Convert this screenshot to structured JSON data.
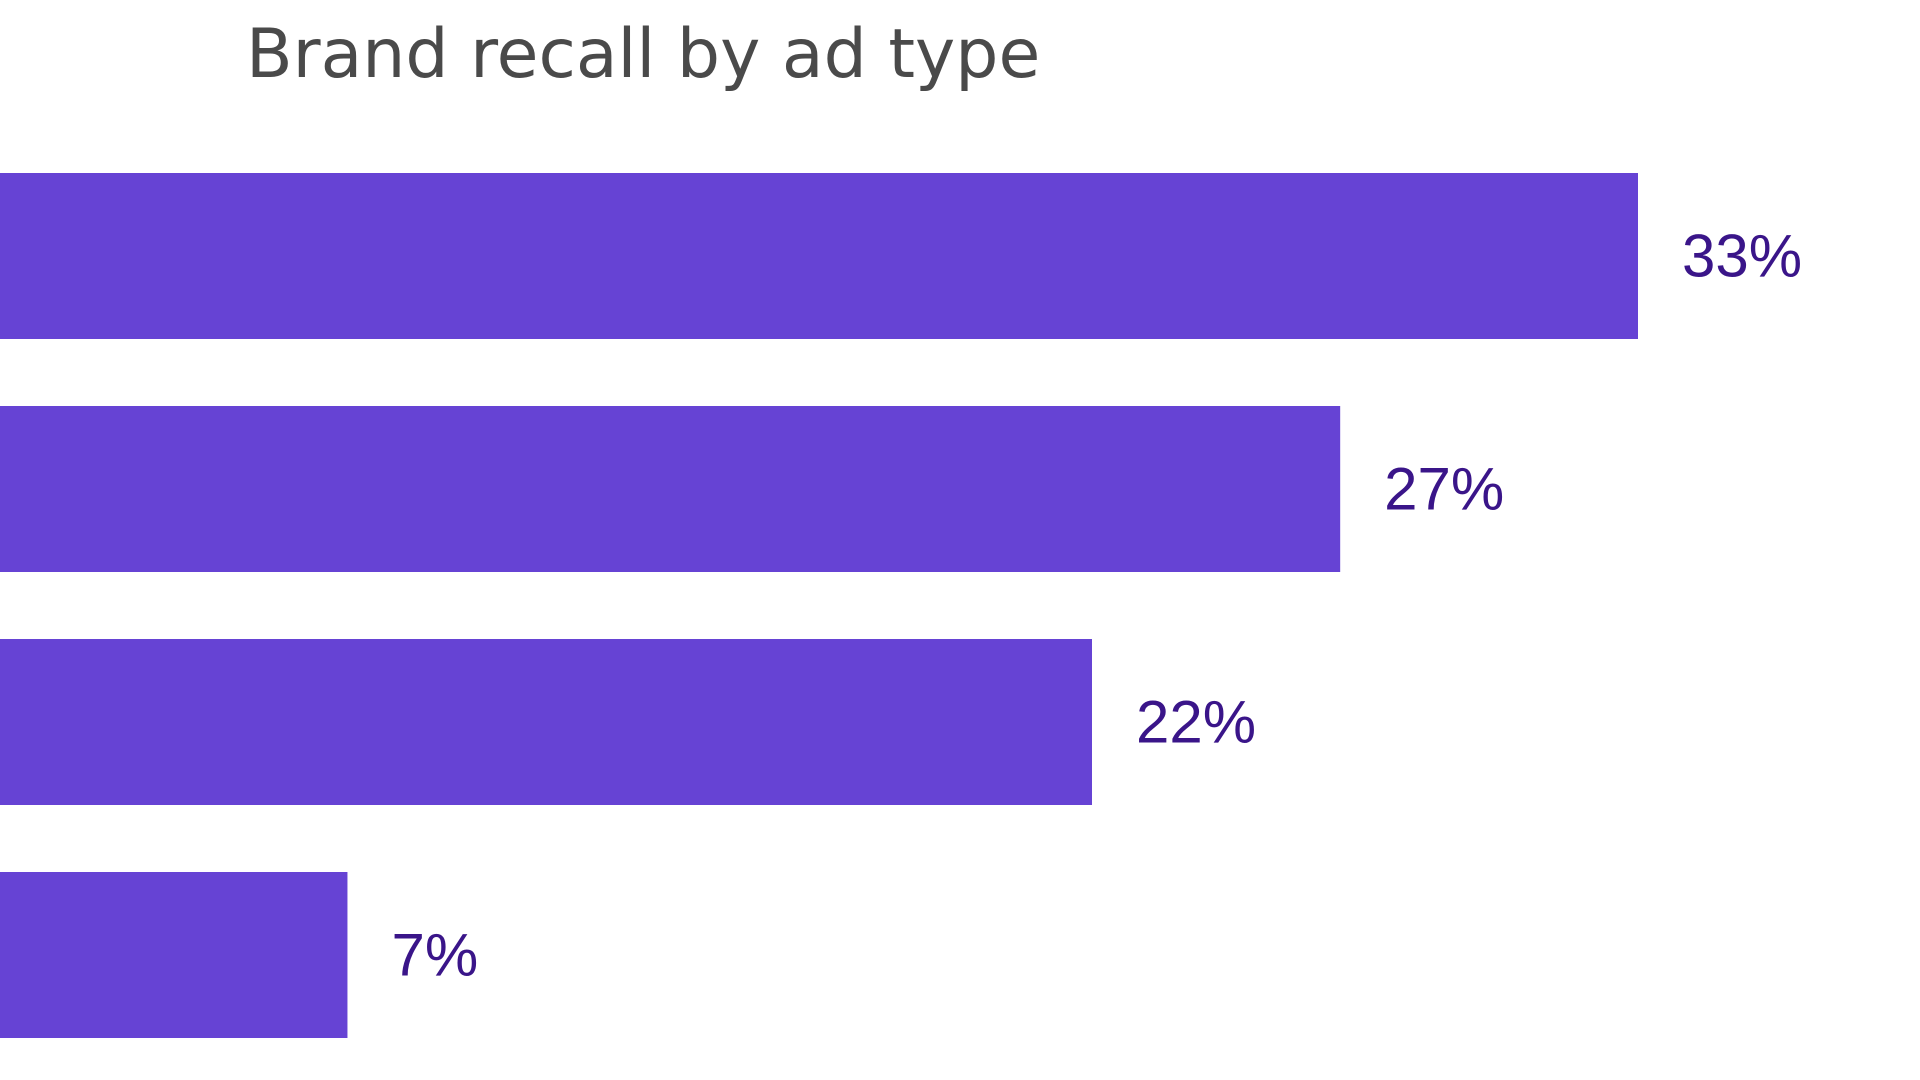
{
  "chart_data": {
    "type": "bar",
    "orientation": "horizontal",
    "title": "Brand recall by ad type",
    "categories": [
      "",
      "",
      "",
      ""
    ],
    "values": [
      33,
      27,
      22,
      7
    ],
    "value_labels": [
      "33%",
      "27%",
      "22%",
      "7%"
    ],
    "unit": "%",
    "xlim": [
      0,
      33
    ],
    "grid": false,
    "legend": "none",
    "bar_color": "#6643d4",
    "label_color": "#3a1589"
  }
}
